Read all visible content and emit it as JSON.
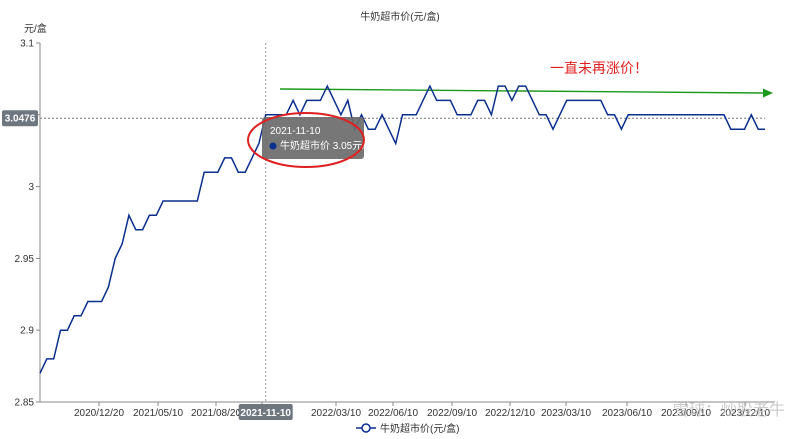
{
  "chart_data": {
    "type": "line",
    "title": "牛奶超市价(元/盒)",
    "ylabel": "元/盒",
    "ylim": [
      2.85,
      3.1
    ],
    "yticks": [
      "2.85",
      "2.9",
      "2.95",
      "3",
      "3.05",
      "3.1"
    ],
    "ytick_values": [
      2.85,
      2.9,
      2.95,
      3.0,
      3.05,
      3.1
    ],
    "xticks": [
      "2020/12/20",
      "2021/05/10",
      "2021/08/20",
      "2021/11/10",
      "2022/03/10",
      "2022/06/10",
      "2022/09/10",
      "2022/12/10",
      "2023/03/10",
      "2023/06/10",
      "2023/09/10",
      "2023/12/10"
    ],
    "legend": {
      "name": "牛奶超市价(元/盒)",
      "position": "bottom"
    },
    "series": [
      {
        "name": "牛奶超市价(元/盒)",
        "color": "#0b2f8f",
        "values": [
          2.87,
          2.88,
          2.88,
          2.9,
          2.9,
          2.91,
          2.91,
          2.92,
          2.92,
          2.92,
          2.93,
          2.95,
          2.96,
          2.98,
          2.97,
          2.97,
          2.98,
          2.98,
          2.99,
          2.99,
          2.99,
          2.99,
          2.99,
          2.99,
          3.01,
          3.01,
          3.01,
          3.02,
          3.02,
          3.01,
          3.01,
          3.02,
          3.03,
          3.05,
          3.05,
          3.05,
          3.05,
          3.06,
          3.05,
          3.06,
          3.06,
          3.06,
          3.07,
          3.06,
          3.05,
          3.06,
          3.04,
          3.05,
          3.04,
          3.04,
          3.05,
          3.04,
          3.03,
          3.05,
          3.05,
          3.05,
          3.06,
          3.07,
          3.06,
          3.06,
          3.06,
          3.05,
          3.05,
          3.05,
          3.06,
          3.06,
          3.05,
          3.07,
          3.07,
          3.06,
          3.07,
          3.07,
          3.06,
          3.05,
          3.05,
          3.04,
          3.05,
          3.06,
          3.06,
          3.06,
          3.06,
          3.06,
          3.06,
          3.05,
          3.05,
          3.04,
          3.05,
          3.05,
          3.05,
          3.05,
          3.05,
          3.05,
          3.05,
          3.05,
          3.05,
          3.05,
          3.05,
          3.05,
          3.05,
          3.05,
          3.05,
          3.04,
          3.04,
          3.04,
          3.05,
          3.04,
          3.04
        ]
      }
    ],
    "crosshair": {
      "x_label": "2021-11-10",
      "y_label": "3.0476",
      "y_value": 3.0476,
      "index": 33
    },
    "tooltip": {
      "date": "2021-11-10",
      "series": "牛奶超市价",
      "value_text": "3.05元/盒",
      "text": "牛奶超市价 3.05元/盒"
    },
    "annotation": {
      "text": "一直未再涨价！",
      "arrow_color": "#1a9a1a",
      "circle_color": "#e02020"
    }
  },
  "watermark": "雪球：炒股老牛"
}
